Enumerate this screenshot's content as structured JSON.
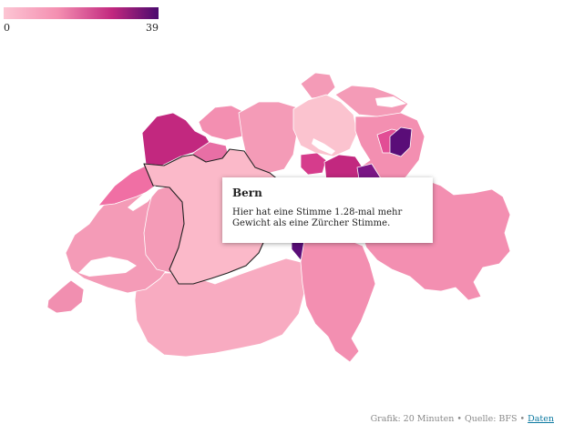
{
  "legend": {
    "min_label": "0",
    "max_label": "39",
    "colors": [
      "#fcc5d3",
      "#f48fb1",
      "#c2287f",
      "#4a0a6e"
    ]
  },
  "map": {
    "selected_region": "Bern",
    "colors": {
      "border": "#ffffff",
      "highlight_outline": "#222222",
      "lake": "#ffffff"
    },
    "regions": [
      {
        "id": "genf",
        "fill": "#f18fb0"
      },
      {
        "id": "waadt",
        "fill": "#f49bb7"
      },
      {
        "id": "wallis",
        "fill": "#f8abc1"
      },
      {
        "id": "freiburg",
        "fill": "#f49bb7"
      },
      {
        "id": "neuenburg",
        "fill": "#f06fa4"
      },
      {
        "id": "jura",
        "fill": "#c2287f"
      },
      {
        "id": "bern",
        "fill": "#fbb9c9"
      },
      {
        "id": "solothurn",
        "fill": "#e86fa5"
      },
      {
        "id": "basel",
        "fill": "#f38fb1"
      },
      {
        "id": "aargau",
        "fill": "#f49bb7"
      },
      {
        "id": "zuerich",
        "fill": "#fbc3cf"
      },
      {
        "id": "schaffhausen",
        "fill": "#f49bb7"
      },
      {
        "id": "thurgau",
        "fill": "#f49bb7"
      },
      {
        "id": "stgallen",
        "fill": "#f38fb1"
      },
      {
        "id": "appenzell-ar",
        "fill": "#e24d95"
      },
      {
        "id": "appenzell-ir",
        "fill": "#5a0d78"
      },
      {
        "id": "zug",
        "fill": "#d63c8c"
      },
      {
        "id": "schwyz",
        "fill": "#c2287f"
      },
      {
        "id": "glarus",
        "fill": "#7a1585"
      },
      {
        "id": "uri",
        "fill": "#5a0d78"
      },
      {
        "id": "graubuenden",
        "fill": "#f38fb1"
      },
      {
        "id": "tessin",
        "fill": "#f38fb1"
      }
    ]
  },
  "tooltip": {
    "title": "Bern",
    "text": "Hier hat eine Stimme 1.28-mal mehr Gewicht als eine Zürcher Stimme."
  },
  "credit": {
    "text": "Grafik: 20 Minuten • Quelle: BFS • ",
    "link": "Daten"
  }
}
